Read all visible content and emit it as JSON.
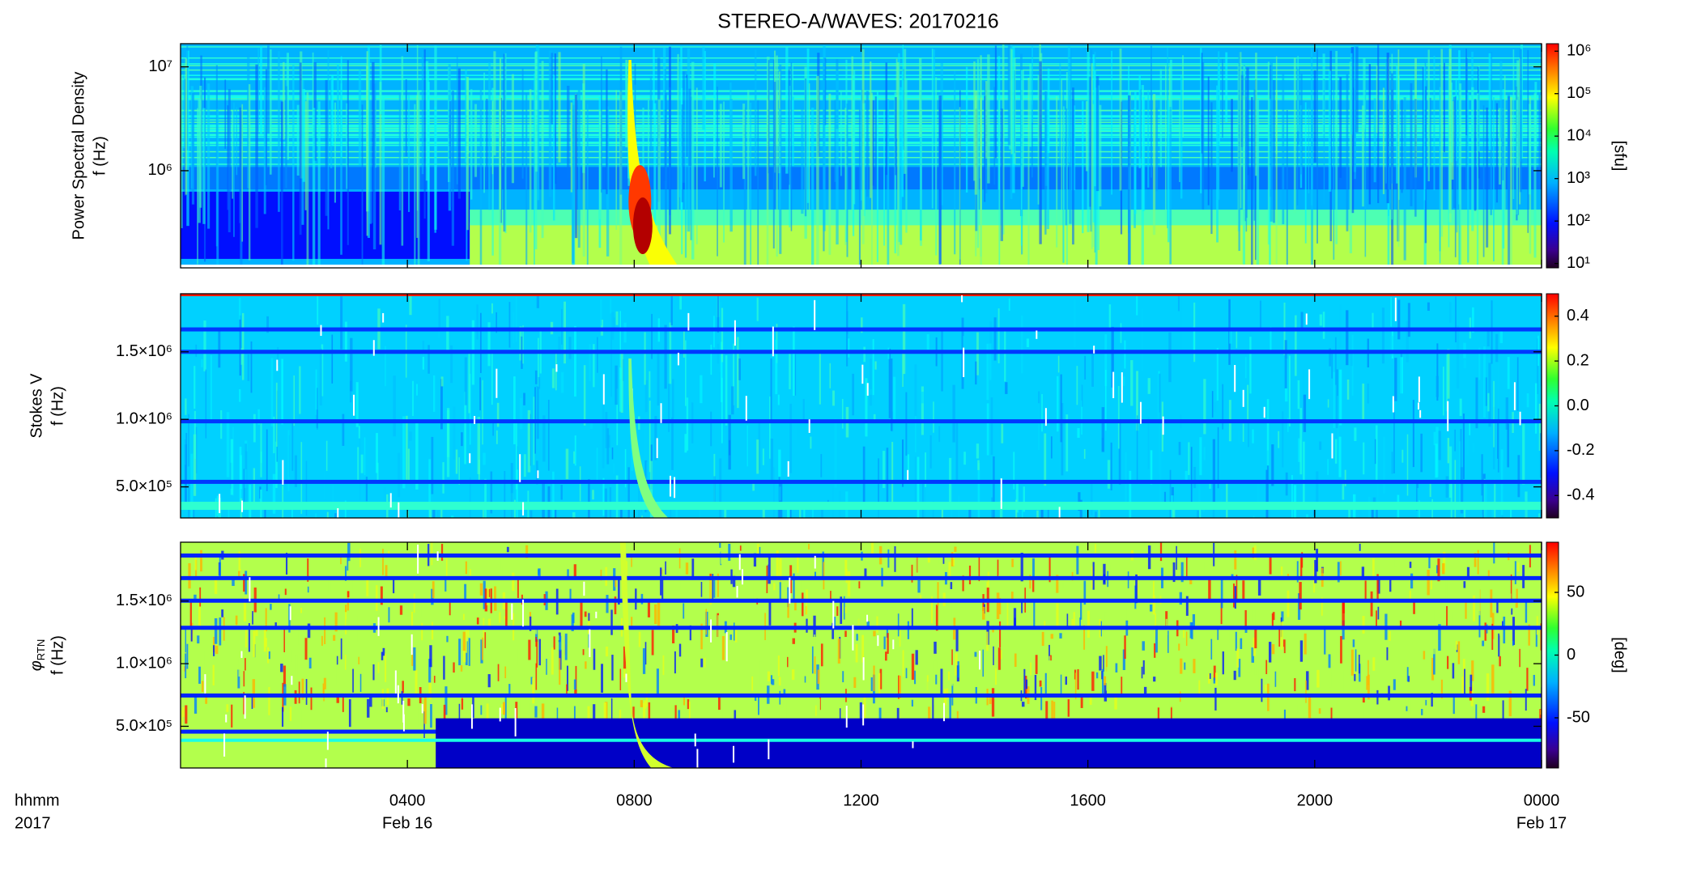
{
  "chart_data": [
    {
      "type": "spectrogram",
      "title": "STEREO-A/WAVES: 20170216",
      "ylabel": "Power Spectral Density",
      "ylabel2": "f (Hz)",
      "yscale": "log",
      "ylim": [
        116000,
        16700000
      ],
      "yticks": [
        {
          "value": 1000000,
          "label": "10⁶"
        },
        {
          "value": 10000000,
          "label": "10⁷"
        }
      ],
      "colorscale": "log",
      "clim": [
        7.9,
        1500000
      ],
      "cticks": [
        {
          "value": 10,
          "label": "10¹"
        },
        {
          "value": 100,
          "label": "10²"
        },
        {
          "value": 1000,
          "label": "10³"
        },
        {
          "value": 10000,
          "label": "10⁴"
        },
        {
          "value": 100000,
          "label": "10⁵"
        },
        {
          "value": 1000000,
          "label": "10⁶"
        }
      ],
      "colorbar_label": "[sfu]"
    },
    {
      "type": "spectrogram",
      "ylabel": "Stokes V",
      "ylabel2": "f (Hz)",
      "yscale": "linear",
      "ylim": [
        270000,
        1930000
      ],
      "yticks": [
        {
          "value": 500000,
          "label": "5.0×10⁵"
        },
        {
          "value": 1000000,
          "label": "1.0×10⁶"
        },
        {
          "value": 1500000,
          "label": "1.5×10⁶"
        }
      ],
      "colorscale": "linear",
      "clim": [
        -0.5,
        0.5
      ],
      "cticks": [
        -0.4,
        -0.2,
        {
          "value": 0,
          "label": "0.0"
        },
        0.2,
        0.4
      ]
    },
    {
      "type": "spectrogram",
      "ylabel_symbol": "φ",
      "ylabel_subscript": "RTN",
      "ylabel2": "f (Hz)",
      "yscale": "linear",
      "ylim": [
        167000,
        1970000
      ],
      "yticks": [
        {
          "value": 500000,
          "label": "5.0×10⁵"
        },
        {
          "value": 1000000,
          "label": "1.0×10⁶"
        },
        {
          "value": 1500000,
          "label": "1.5×10⁶"
        }
      ],
      "colorscale": "linear",
      "clim": [
        -90,
        90
      ],
      "cticks": [
        -50,
        0,
        50
      ],
      "colorbar_label": "[deg]",
      "xlabel": [
        "hhmm",
        "2017"
      ],
      "xlim": [
        0,
        24
      ],
      "xticks": [
        {
          "value": 4,
          "label": "0400"
        },
        {
          "value": 8,
          "label": "0800"
        },
        {
          "value": 12,
          "label": "1200"
        },
        {
          "value": 16,
          "label": "1600"
        },
        {
          "value": 20,
          "label": "2000"
        },
        {
          "value": 24,
          "label": "0000"
        }
      ],
      "date_labels": [
        {
          "value": 4,
          "label": "Feb 16"
        },
        {
          "value": 24,
          "label": "Feb 17"
        }
      ]
    }
  ]
}
